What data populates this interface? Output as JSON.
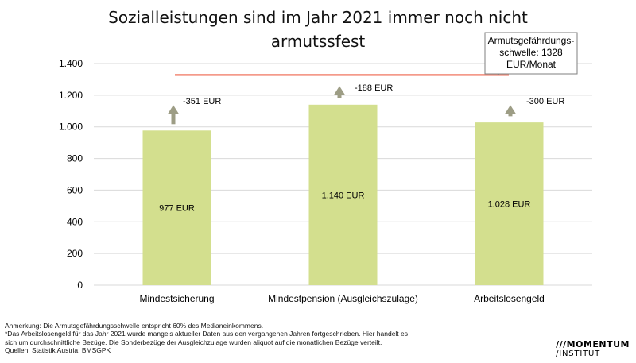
{
  "chart_data": {
    "type": "bar",
    "title_line1": "Sozialleistungen sind im Jahr 2021 immer noch nicht",
    "title_line2": "armutssfest",
    "categories": [
      "Mindestsicherung",
      "Mindestpension (Ausgleichszulage)",
      "Arbeitslosengeld"
    ],
    "values": [
      977,
      1140,
      1028
    ],
    "value_labels": [
      "977 EUR",
      "1.140 EUR",
      "1.028 EUR"
    ],
    "gap_labels": [
      "-351 EUR",
      "-188 EUR",
      "-300 EUR"
    ],
    "threshold": 1328,
    "threshold_label": [
      "Armutsgefährdungs-",
      "schwelle: 1328",
      "EUR/Monat"
    ],
    "ylim": [
      0,
      1400
    ],
    "yticks": [
      0,
      200,
      400,
      600,
      800,
      1000,
      1200,
      1400
    ],
    "ytick_labels": [
      "0",
      "200",
      "400",
      "600",
      "800",
      "1.000",
      "1.200",
      "1.400"
    ],
    "colors": {
      "bar": "#d3df8e",
      "threshold": "#f28b79",
      "arrow": "#9d9d85",
      "grid": "#d9d9d9"
    }
  },
  "notes": [
    "Anmerkung: Die Armutsgefährdungsschwelle entspricht 60% des Medianeinkommens.",
    "*Das Arbeitslosengeld für das Jahr 2021 wurde mangels aktueller Daten aus den vergangenen Jahren fortgeschrieben. Hier handelt es",
    "sich um durchschnittliche Bezüge. Die Sonderbezüge der Ausgleichzulage wurden aliquot auf die monatlichen Bezüge verteilt.",
    "Quellen: Statistik Austria, BMSGPK"
  ],
  "logo": {
    "line1": "MOMENTUM",
    "line2": "INSTITUT"
  }
}
